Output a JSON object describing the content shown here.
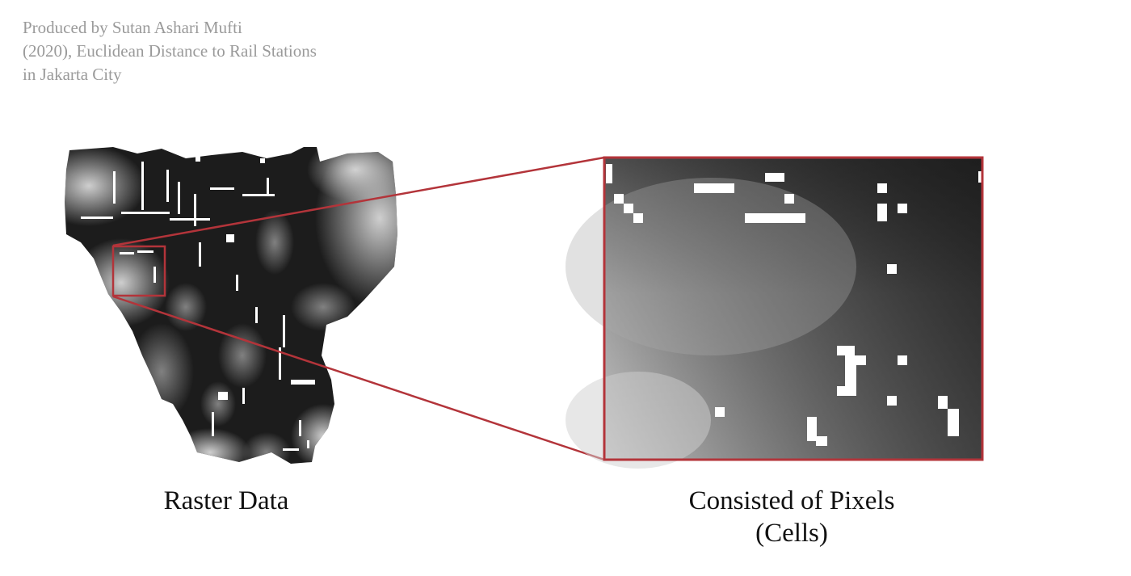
{
  "credit": {
    "lines": [
      "Produced by Sutan Ashari Mufti",
      "(2020), Euclidean Distance to Rail Stations",
      "in Jakarta City"
    ]
  },
  "captions": {
    "raster": "Raster Data",
    "pixels_line1": "Consisted of Pixels",
    "pixels_line2": "(Cells)"
  },
  "colors": {
    "frame": "#b3343a",
    "raster_dark": "#1a1a1a",
    "raster_light": "#e6e6e6",
    "station_cells": "#ffffff"
  }
}
